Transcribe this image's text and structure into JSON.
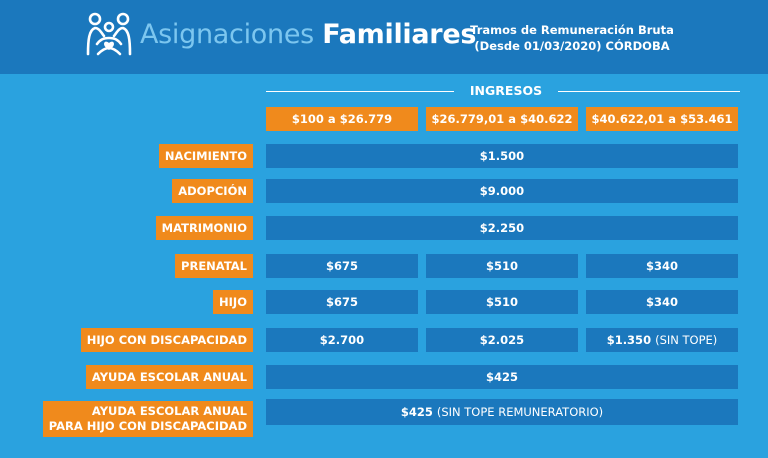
{
  "header": {
    "title_light": "Asignaciones",
    "title_bold": "Familiares",
    "subtitle_line1": "Tramos de Remuneración Bruta",
    "subtitle_line2": "(Desde 01/03/2020) CÓRDOBA",
    "logo_icon": "family-icon",
    "colors": {
      "header_bg": "#1b78bd",
      "page_bg": "#2aa2df",
      "accent": "#f08a1c"
    }
  },
  "table": {
    "group_header": "INGRESOS",
    "ranges": [
      "$100 a $26.779",
      "$26.779,01 a $40.622",
      "$40.622,01 a $53.461"
    ],
    "rows": [
      {
        "label": "NACIMIENTO",
        "value": "$1.500"
      },
      {
        "label": "ADOPCIÓN",
        "value": "$9.000"
      },
      {
        "label": "MATRIMONIO",
        "value": "$2.250"
      },
      {
        "label": "PRENATAL",
        "values": [
          "$675",
          "$510",
          "$340"
        ]
      },
      {
        "label": "HIJO",
        "values": [
          "$675",
          "$510",
          "$340"
        ]
      },
      {
        "label": "HIJO CON DISCAPACIDAD",
        "values": [
          "$2.700",
          "$2.025",
          "$1.350"
        ],
        "note": "(SIN TOPE)"
      },
      {
        "label": "AYUDA ESCOLAR ANUAL",
        "value": "$425"
      },
      {
        "label_line1": "AYUDA ESCOLAR ANUAL",
        "label_line2": "PARA HIJO CON DISCAPACIDAD",
        "value": "$425",
        "note": "(SIN TOPE REMUNERATORIO)"
      }
    ]
  }
}
